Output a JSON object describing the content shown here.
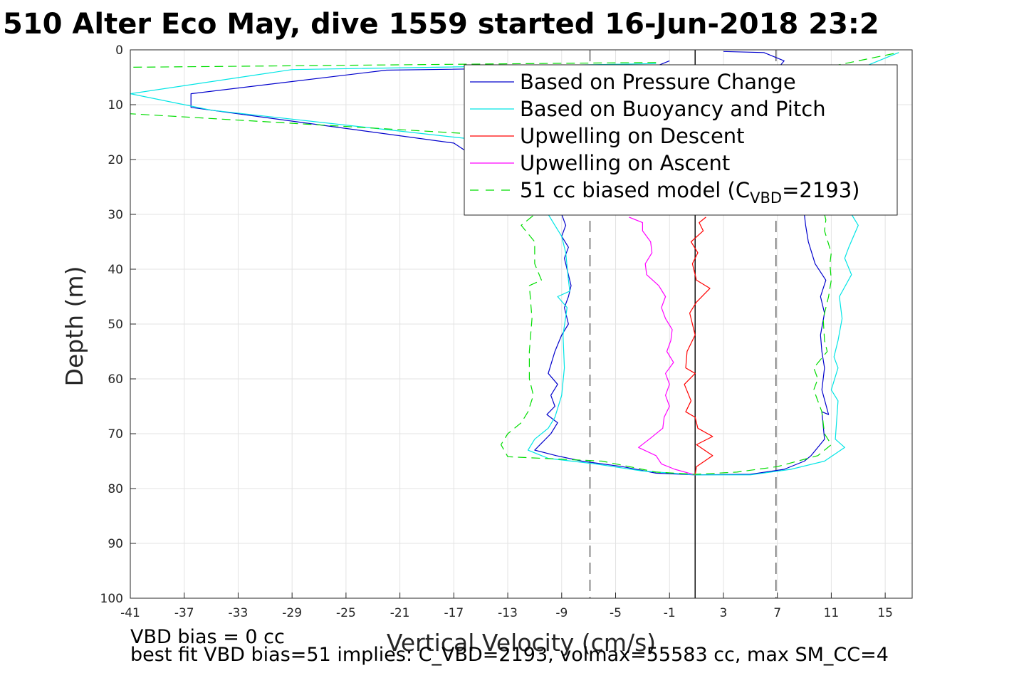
{
  "chart_data": {
    "type": "line",
    "title": "510 Alter Eco May, dive 1559 started 16-Jun-2018 23:2",
    "xlabel": "Vertical Velocity (cm/s)",
    "ylabel": "Depth (m)",
    "xlim": [
      -41,
      17
    ],
    "ylim": [
      0,
      100
    ],
    "y_reversed": true,
    "grid": true,
    "xticks": [
      "-41",
      "-37",
      "-33",
      "-29",
      "-25",
      "-21",
      "-17",
      "-13",
      "-9",
      "-5",
      "-1",
      "3",
      "7",
      "11",
      "15"
    ],
    "yticks": [
      "0",
      "10",
      "20",
      "30",
      "40",
      "50",
      "60",
      "70",
      "80",
      "90",
      "100"
    ],
    "legend_position": "top-right",
    "colors": {
      "pressure": "#0000cc",
      "buoyancy": "#00e5e5",
      "up_descent": "#ff0000",
      "up_ascent": "#ff00ff",
      "model": "#00dd00",
      "ref": "#555555"
    },
    "legend": [
      {
        "label": "Based on Pressure Change",
        "color": "#0000cc",
        "style": "solid"
      },
      {
        "label": "Based on Buoyancy and Pitch",
        "color": "#00e5e5",
        "style": "solid"
      },
      {
        "label": "Upwelling on Descent",
        "color": "#ff0000",
        "style": "solid"
      },
      {
        "label": "Upwelling on Ascent",
        "color": "#ff00ff",
        "style": "solid"
      },
      {
        "label_prefix": "51 cc biased model (C",
        "label_sub": "VBD",
        "label_suffix": "=2193)",
        "color": "#00dd00",
        "style": "dashed"
      }
    ],
    "reference_lines": [
      {
        "x": 0.9,
        "style": "solid"
      },
      {
        "x": -6.9,
        "style": "dashed"
      },
      {
        "x": 6.9,
        "style": "dashed"
      }
    ],
    "series": [
      {
        "name": "Based on Pressure Change",
        "color": "#0000cc",
        "style": "solid",
        "points": [
          [
            -1,
            2
          ],
          [
            -2,
            3
          ],
          [
            -22,
            3.7
          ],
          [
            -36.5,
            8
          ],
          [
            -36.5,
            10.5
          ],
          [
            -17,
            17
          ],
          [
            -9,
            30
          ],
          [
            -8.7,
            32
          ],
          [
            -9,
            34
          ],
          [
            -8.5,
            36
          ],
          [
            -8.8,
            38
          ],
          [
            -8.3,
            43
          ],
          [
            -8.5,
            45
          ],
          [
            -8.8,
            47
          ],
          [
            -8.5,
            50
          ],
          [
            -9,
            52
          ],
          [
            -9.5,
            55
          ],
          [
            -10,
            59
          ],
          [
            -9.3,
            61
          ],
          [
            -9.8,
            63
          ],
          [
            -9.5,
            65
          ],
          [
            -10.1,
            66.5
          ],
          [
            -9.3,
            68
          ],
          [
            -9.8,
            70
          ],
          [
            -11,
            73
          ],
          [
            -9.4,
            74
          ],
          [
            -7.5,
            75
          ],
          [
            -4.5,
            76
          ],
          [
            -2,
            77.2
          ],
          [
            0.9,
            77.5
          ],
          [
            5,
            77.4
          ],
          [
            7.5,
            76.5
          ],
          [
            9,
            75
          ],
          [
            9.5,
            74
          ],
          [
            10.5,
            71
          ],
          [
            10.3,
            66
          ],
          [
            10.8,
            66.5
          ],
          [
            10.3,
            62
          ],
          [
            10.5,
            58
          ],
          [
            10.3,
            55
          ],
          [
            10.2,
            52
          ],
          [
            10.5,
            48
          ],
          [
            10.2,
            45
          ],
          [
            10.6,
            42
          ],
          [
            9.8,
            39
          ],
          [
            9.3,
            35
          ],
          [
            9.1,
            32
          ],
          [
            9,
            30
          ],
          [
            7,
            20
          ],
          [
            5,
            12
          ],
          [
            6.5,
            5
          ],
          [
            7.5,
            2
          ],
          [
            6,
            0.5
          ],
          [
            3,
            0.3
          ]
        ]
      },
      {
        "name": "Based on Buoyancy and Pitch",
        "color": "#00e5e5",
        "style": "solid",
        "points": [
          [
            -2,
            2.5
          ],
          [
            -29,
            3.6
          ],
          [
            -41,
            8
          ],
          [
            -35,
            11
          ],
          [
            -13,
            17
          ],
          [
            -10,
            30
          ],
          [
            -9.5,
            32
          ],
          [
            -9,
            34
          ],
          [
            -8.7,
            37
          ],
          [
            -8.5,
            42
          ],
          [
            -8.4,
            44
          ],
          [
            -9.3,
            45
          ],
          [
            -8.6,
            47
          ],
          [
            -8.9,
            52
          ],
          [
            -8.8,
            58
          ],
          [
            -9,
            63
          ],
          [
            -9.5,
            67
          ],
          [
            -10,
            69
          ],
          [
            -11,
            71
          ],
          [
            -11.5,
            73
          ],
          [
            -10,
            74.5
          ],
          [
            -6.5,
            75.5
          ],
          [
            -3,
            76.8
          ],
          [
            0.9,
            77.5
          ],
          [
            5,
            77.5
          ],
          [
            8,
            76.5
          ],
          [
            10.5,
            75
          ],
          [
            12,
            72.5
          ],
          [
            11.3,
            71
          ],
          [
            11.5,
            64
          ],
          [
            11,
            62
          ],
          [
            11.5,
            58
          ],
          [
            11.2,
            56
          ],
          [
            11.5,
            53
          ],
          [
            11.8,
            49
          ],
          [
            11.6,
            45
          ],
          [
            12.5,
            41
          ],
          [
            12,
            38
          ],
          [
            12.3,
            36
          ],
          [
            13,
            32
          ],
          [
            12.5,
            30
          ],
          [
            11,
            20
          ],
          [
            9,
            12
          ],
          [
            11,
            6
          ],
          [
            13,
            3.5
          ],
          [
            14,
            2.5
          ],
          [
            16,
            0.5
          ]
        ]
      },
      {
        "name": "Upwelling on Descent",
        "color": "#ff0000",
        "style": "solid",
        "points": [
          [
            1.7,
            30.5
          ],
          [
            1.2,
            31.5
          ],
          [
            1.5,
            33
          ],
          [
            0.6,
            35
          ],
          [
            1.1,
            37
          ],
          [
            0.7,
            39
          ],
          [
            1,
            42
          ],
          [
            2,
            43.5
          ],
          [
            1,
            46
          ],
          [
            0.5,
            48
          ],
          [
            0.9,
            52
          ],
          [
            0.3,
            55
          ],
          [
            0.2,
            58
          ],
          [
            0.9,
            59
          ],
          [
            0.1,
            61
          ],
          [
            0.6,
            64
          ],
          [
            0.2,
            66
          ],
          [
            0.9,
            67
          ],
          [
            1.1,
            69
          ],
          [
            2.2,
            70.5
          ],
          [
            1,
            72
          ],
          [
            2.2,
            74
          ],
          [
            1,
            76
          ],
          [
            0.9,
            77.5
          ]
        ]
      },
      {
        "name": "Upwelling on Ascent",
        "color": "#ff00ff",
        "style": "solid",
        "points": [
          [
            -4,
            30.5
          ],
          [
            -3,
            31.5
          ],
          [
            -3,
            33
          ],
          [
            -2.4,
            35
          ],
          [
            -2.3,
            37
          ],
          [
            -2.8,
            39
          ],
          [
            -2.7,
            41
          ],
          [
            -1.8,
            43
          ],
          [
            -1.3,
            45
          ],
          [
            -1.6,
            47
          ],
          [
            -1.3,
            49
          ],
          [
            -0.8,
            51
          ],
          [
            -0.9,
            53
          ],
          [
            -1.2,
            55
          ],
          [
            -0.7,
            57
          ],
          [
            -1.3,
            59
          ],
          [
            -1,
            61
          ],
          [
            -1.3,
            63
          ],
          [
            -1,
            65
          ],
          [
            -1.4,
            67
          ],
          [
            -1.5,
            69
          ],
          [
            -2.5,
            71
          ],
          [
            -3.3,
            72.5
          ],
          [
            -2,
            74
          ],
          [
            -1.6,
            75.5
          ],
          [
            -0.6,
            76.5
          ],
          [
            0.9,
            77.5
          ]
        ]
      },
      {
        "name": "51 cc biased model",
        "color": "#00dd00",
        "style": "dashed",
        "points": [
          [
            -2,
            2.3
          ],
          [
            -42,
            3.2
          ],
          [
            -42,
            11.5
          ],
          [
            -11,
            16
          ],
          [
            -11,
            30
          ],
          [
            -12,
            32
          ],
          [
            -11,
            35
          ],
          [
            -11,
            39
          ],
          [
            -10.5,
            42
          ],
          [
            -11.4,
            43
          ],
          [
            -11.2,
            49
          ],
          [
            -11.4,
            55
          ],
          [
            -11.4,
            60
          ],
          [
            -11.1,
            63
          ],
          [
            -11.5,
            66
          ],
          [
            -12,
            68
          ],
          [
            -13,
            70
          ],
          [
            -13.5,
            72
          ],
          [
            -13,
            74.2
          ],
          [
            -6,
            75
          ],
          [
            -2,
            77
          ],
          [
            0.9,
            77.4
          ],
          [
            4,
            77
          ],
          [
            7,
            76
          ],
          [
            10,
            74
          ],
          [
            11,
            72
          ],
          [
            10.5,
            70
          ],
          [
            10.3,
            66
          ],
          [
            9.7,
            62
          ],
          [
            10,
            60
          ],
          [
            9.7,
            58
          ],
          [
            10.7,
            55
          ],
          [
            10.5,
            53
          ],
          [
            10.4,
            49
          ],
          [
            10.8,
            45
          ],
          [
            11,
            42
          ],
          [
            10.9,
            39
          ],
          [
            11,
            37
          ],
          [
            10.5,
            33
          ],
          [
            10.6,
            31
          ],
          [
            10.5,
            30
          ],
          [
            9,
            20
          ],
          [
            7,
            12
          ],
          [
            7.5,
            6
          ],
          [
            10,
            3.5
          ],
          [
            16,
            0.5
          ]
        ]
      }
    ],
    "footnotes": [
      "VBD bias = 0 cc",
      "best fit VBD bias=51 implies: C_VBD=2193, volmax=55583 cc, max SM_CC=4"
    ]
  }
}
